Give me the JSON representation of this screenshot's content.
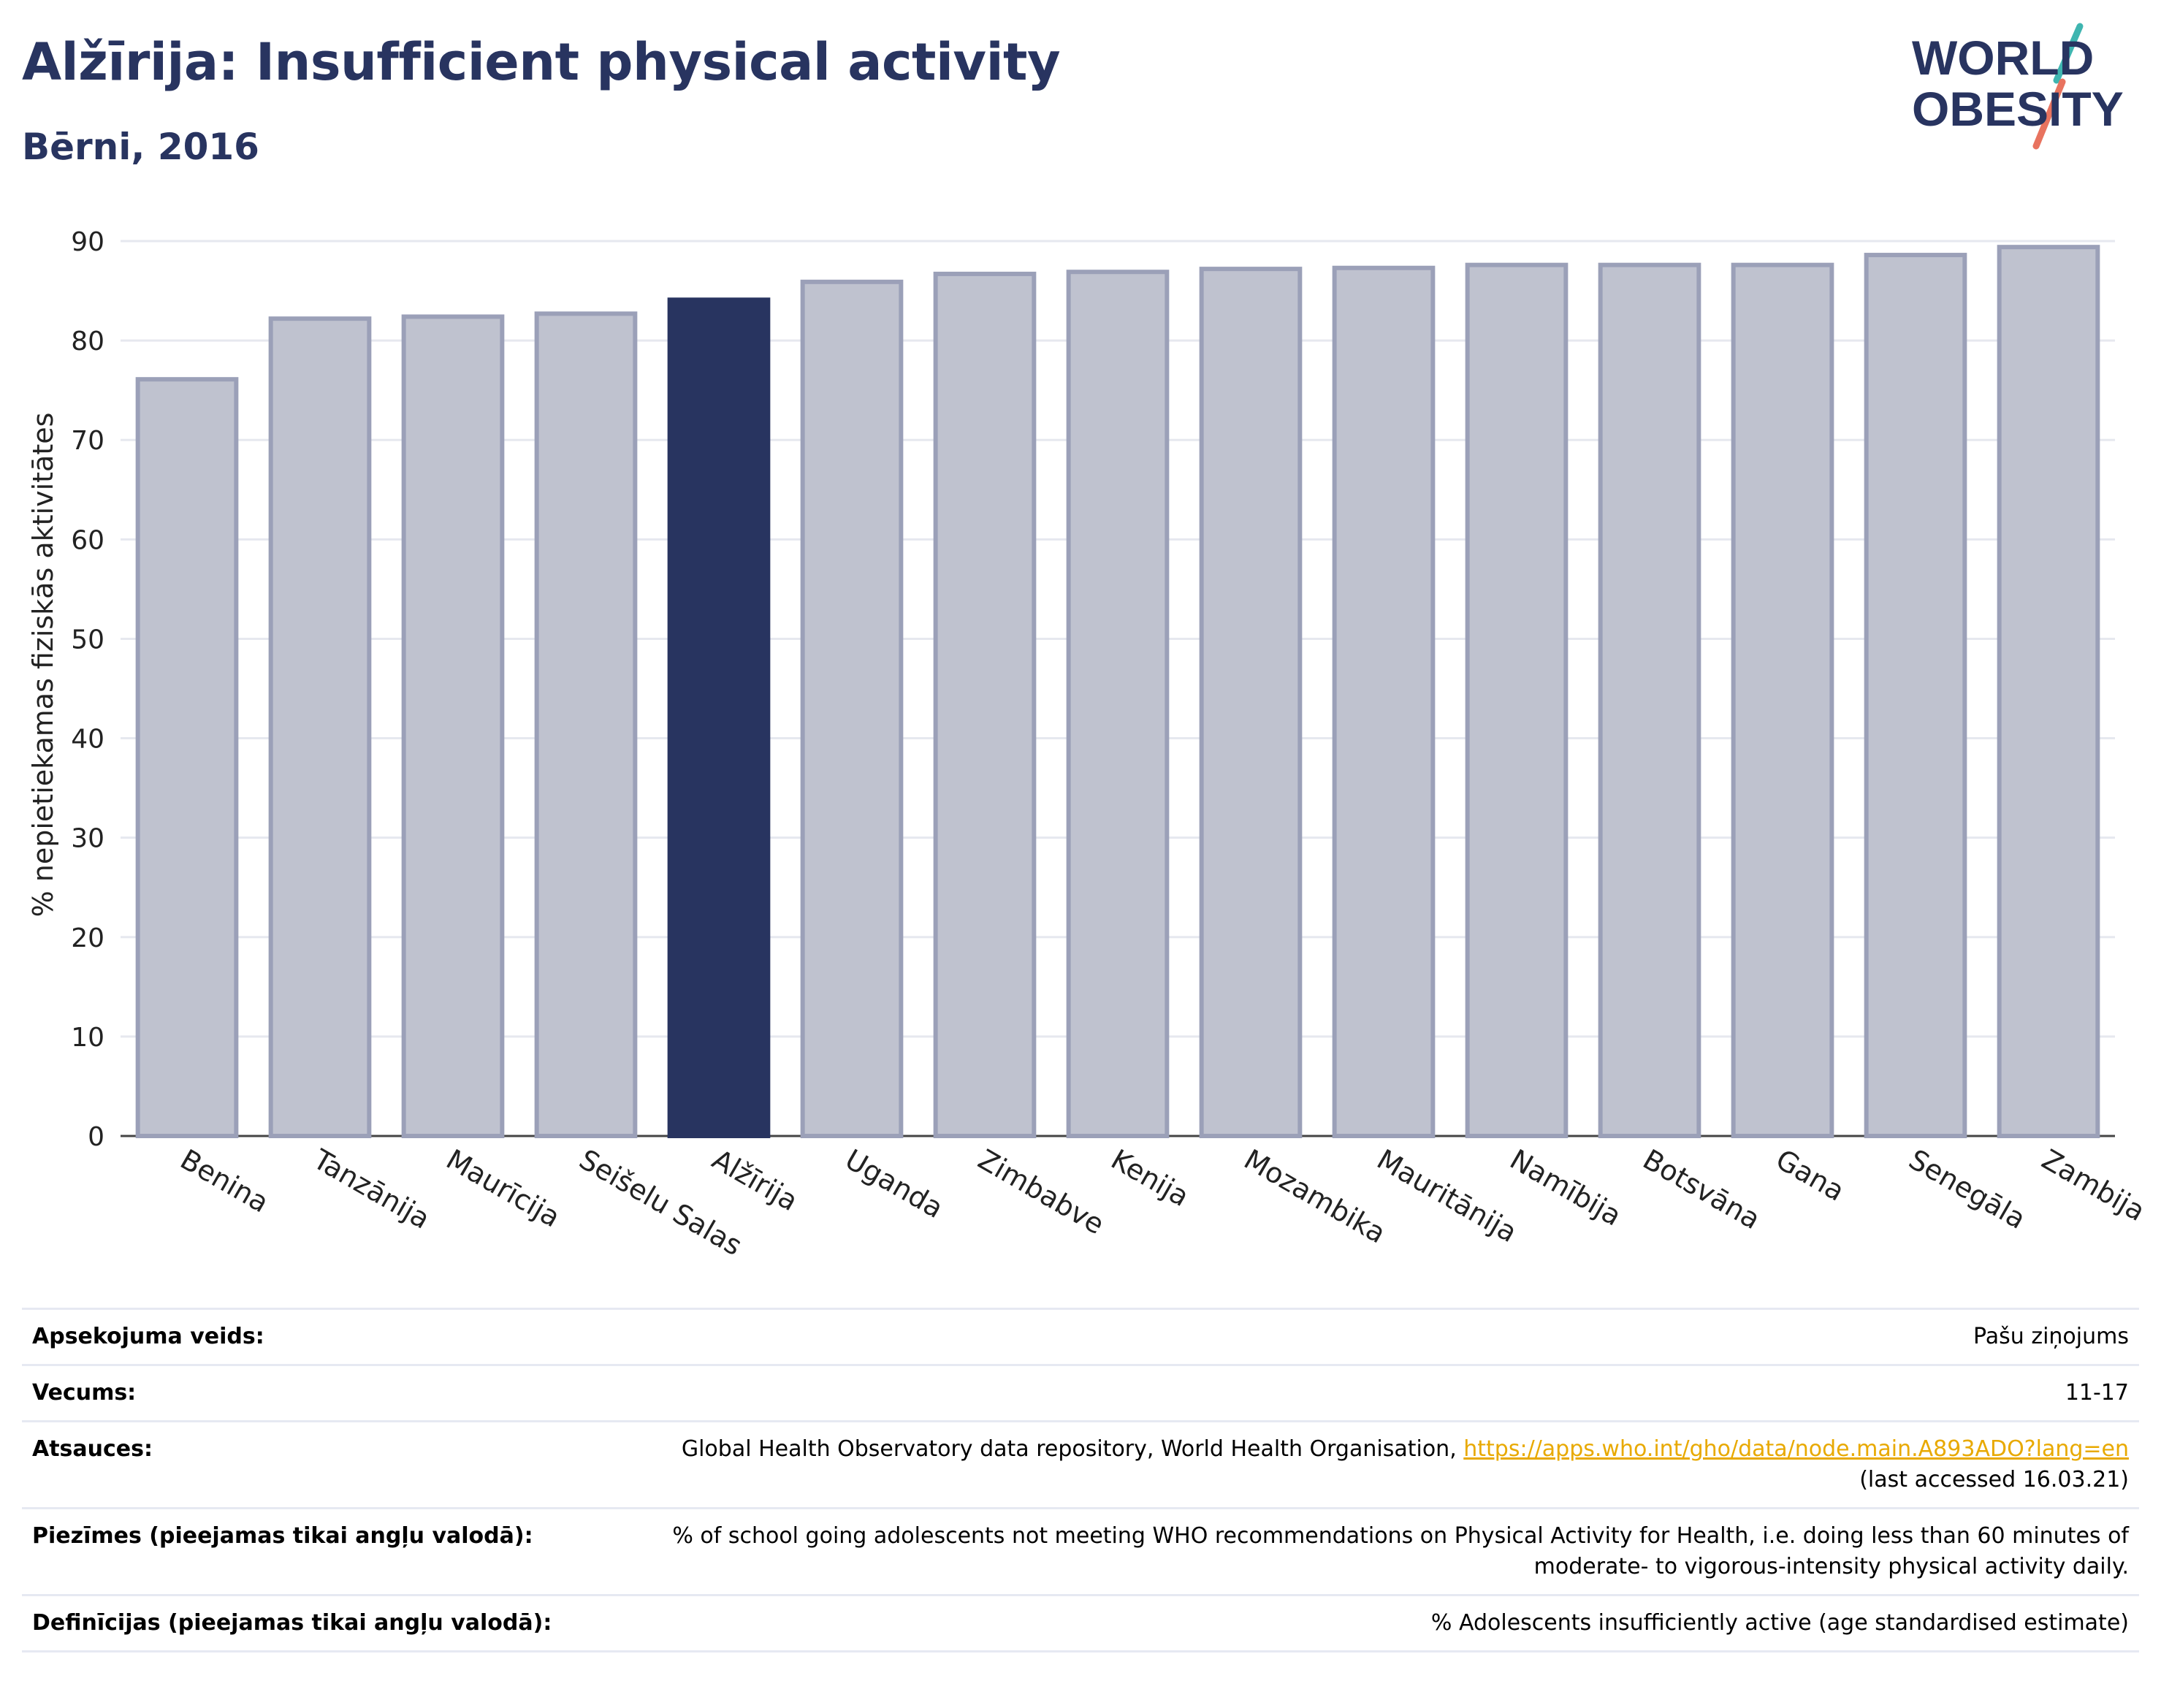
{
  "header": {
    "title": "Alžīrija: Insufficient physical activity",
    "subtitle": "Bērni, 2016"
  },
  "logo": {
    "line1": "WORLD",
    "line2": "OBESITY",
    "text_color": "#283460",
    "accent_teal": "#3fb5b0",
    "accent_coral": "#e8735f"
  },
  "chart_data": {
    "type": "bar",
    "categories": [
      "Benina",
      "Tanzānija",
      "Maurīcija",
      "Seišelu Salas",
      "Alžīrija",
      "Uganda",
      "Zimbabve",
      "Kenija",
      "Mozambika",
      "Mauritānija",
      "Namībija",
      "Botsvāna",
      "Gana",
      "Senegāla",
      "Zambija"
    ],
    "values": [
      76.1,
      82.2,
      82.4,
      82.7,
      84.1,
      85.9,
      86.7,
      86.9,
      87.2,
      87.3,
      87.6,
      87.6,
      87.6,
      88.6,
      89.4
    ],
    "highlight": "Alžīrija",
    "ylabel": "% nepietiekamas fiziskās aktivitātes",
    "xlabel": "",
    "ylim": [
      0,
      90
    ],
    "yticks": [
      0,
      10,
      20,
      30,
      40,
      50,
      60,
      70,
      80,
      90
    ],
    "grid": true,
    "colors": {
      "highlight": "#283460",
      "bar_fill": "#bfc2cf",
      "bar_stroke": "#9ba0b8",
      "grid": "#e6e8ef",
      "axis": "#444444"
    }
  },
  "details": [
    {
      "key": "Apsekojuma veids:",
      "value": "Pašu ziņojums"
    },
    {
      "key": "Vecums:",
      "value": "11-17"
    },
    {
      "key": "Atsauces:",
      "value": "Global Health Observatory data repository, World Health Organisation, ",
      "link": "https://apps.who.int/gho/data/node.main.A893ADO?lang=en",
      "value2": "(last accessed 16.03.21)"
    },
    {
      "key": "Piezīmes (pieejamas tikai angļu valodā):",
      "value": "% of school going adolescents not meeting WHO recommendations on Physical Activity for Health, i.e. doing less than 60 minutes of moderate- to vigorous-intensity physical activity daily."
    },
    {
      "key": "Definīcijas (pieejamas tikai angļu valodā):",
      "value": "% Adolescents insufficiently active (age standardised estimate)"
    }
  ]
}
